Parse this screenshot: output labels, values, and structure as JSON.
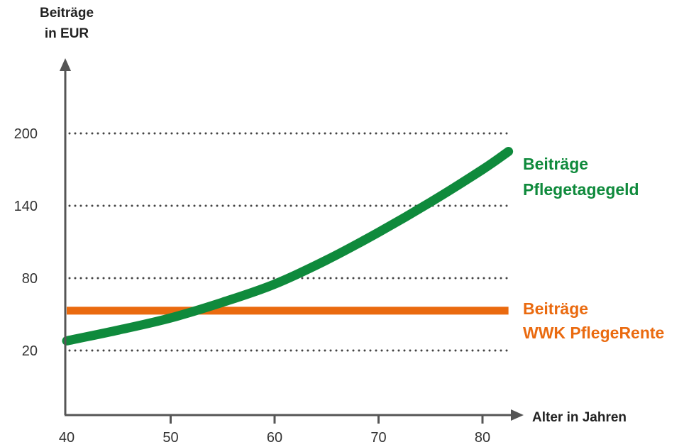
{
  "chart_data": {
    "type": "line",
    "ylabel_lines": [
      "Beiträge",
      "in EUR"
    ],
    "xlabel": "Alter in Jahren",
    "xlim": [
      40,
      80
    ],
    "ylim": [
      20,
      200
    ],
    "x_ticks": [
      40,
      50,
      60,
      70,
      80
    ],
    "y_ticks": [
      200,
      140,
      80,
      20
    ],
    "gridlines_at": [
      200,
      140,
      80,
      20
    ],
    "grid_style": "dotted",
    "series": [
      {
        "label_lines": [
          "Beiträge",
          "Pflegetagegeld"
        ],
        "color": "#0f8a3c",
        "x": [
          40,
          45,
          50,
          55,
          60,
          65,
          70,
          75,
          80,
          82.5
        ],
        "y": [
          28,
          37,
          47,
          60,
          75,
          95,
          118,
          143,
          170,
          185
        ]
      },
      {
        "label_lines": [
          "Beiträge",
          "WWK PflegeRente"
        ],
        "color": "#ea6a0f",
        "x": [
          40,
          82.5
        ],
        "y": [
          53,
          53
        ]
      }
    ]
  }
}
